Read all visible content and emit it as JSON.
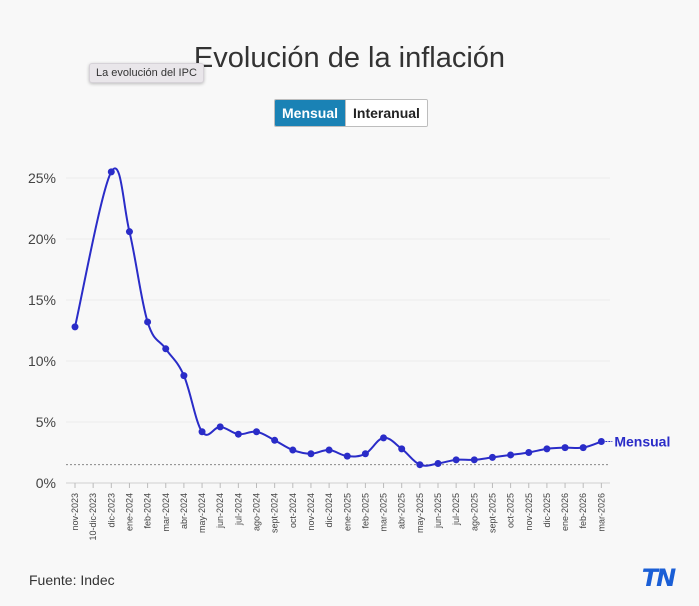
{
  "header": {
    "title": "Evolución de la inflación",
    "tooltip": "La evolución del IPC"
  },
  "toggle": {
    "options": [
      "Mensual",
      "Interanual"
    ],
    "selected": "Mensual"
  },
  "footer": {
    "source": "Fuente: Indec",
    "logo_text": "TN"
  },
  "colors": {
    "series": "#2a2cc8",
    "accent": "#1a82b5",
    "logo": "#1b5fd6"
  },
  "chart_data": {
    "type": "line",
    "title": "Evolución de la inflación",
    "xlabel": "",
    "ylabel": "",
    "ylim": [
      0,
      26
    ],
    "yticks": [
      0,
      5,
      10,
      15,
      20,
      25
    ],
    "ytick_labels": [
      "0%",
      "5%",
      "10%",
      "15%",
      "20%",
      "25%"
    ],
    "reference_line": 1.5,
    "categories": [
      "nov-2023",
      "10-dic-2023",
      "dic-2023",
      "ene-2024",
      "feb-2024",
      "mar-2024",
      "abr-2024",
      "may-2024",
      "jun-2024",
      "jul-2024",
      "ago-2024",
      "sept-2024",
      "oct-2024",
      "nov-2024",
      "dic-2024",
      "ene-2025",
      "feb-2025",
      "mar-2025",
      "abr-2025",
      "may-2025",
      "jun-2025",
      "jul-2025",
      "ago-2025",
      "sept-2025",
      "oct-2025",
      "nov-2025",
      "dic-2025",
      "ene-2026",
      "feb-2026",
      "mar-2026"
    ],
    "series": [
      {
        "name": "Mensual",
        "values": [
          12.8,
          null,
          25.5,
          20.6,
          13.2,
          11.0,
          8.8,
          4.2,
          4.6,
          4.0,
          4.2,
          3.5,
          2.7,
          2.4,
          2.7,
          2.2,
          2.4,
          3.7,
          2.8,
          1.5,
          1.6,
          1.9,
          1.9,
          2.1,
          2.3,
          2.5,
          2.8,
          2.9,
          2.9,
          3.4
        ]
      }
    ]
  }
}
